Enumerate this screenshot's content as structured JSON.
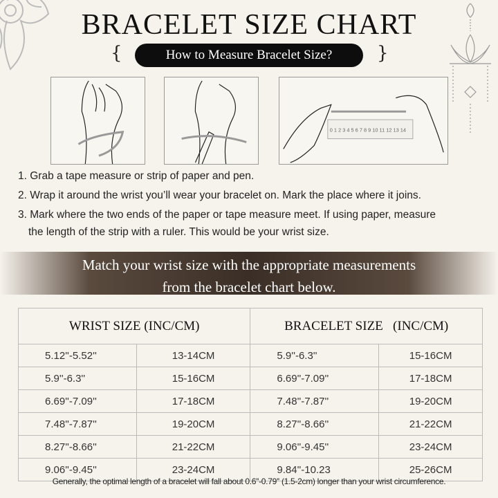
{
  "title": "BRACELET SIZE CHART",
  "subtitle": "How to Measure Bracelet Size?",
  "ruler_numbers": "0 1 2 3 4 5 6 7 8 9 10 11 12 13 14",
  "instructions": [
    "1. Grab a tape measure or strip of paper and pen.",
    "2. Wrap it around the wrist you’ll wear your bracelet on. Mark the place where it joins.",
    "3. Mark where the two ends of the paper or tape measure meet. If using paper, measure",
    "the length of the strip with a ruler. This would be your wrist size."
  ],
  "banner": [
    "Match your wrist size with the appropriate measurements",
    "from the bracelet chart below."
  ],
  "table": {
    "headers": [
      "WRIST SIZE (INC/CM)",
      "BRACELET SIZE   (INC/CM)"
    ],
    "rows": [
      [
        "5.12''-5.52''",
        "13-14CM",
        "5.9''-6.3''",
        "15-16CM"
      ],
      [
        "5.9''-6.3''",
        "15-16CM",
        "6.69''-7.09''",
        "17-18CM"
      ],
      [
        "6.69''-7.09''",
        "17-18CM",
        "7.48''-7.87''",
        "19-20CM"
      ],
      [
        "7.48''-7.87''",
        "19-20CM",
        "8.27''-8.66''",
        "21-22CM"
      ],
      [
        "8.27''-8.66''",
        "21-22CM",
        "9.06''-9.45''",
        "23-24CM"
      ],
      [
        "9.06''-9.45''",
        "23-24CM",
        "9.84''-10.23",
        "25-26CM"
      ]
    ]
  },
  "footnote": "Generally, the optimal length of a bracelet will fall about 0.6''-0.79'' (1.5-2cm) longer than your wrist circumference."
}
